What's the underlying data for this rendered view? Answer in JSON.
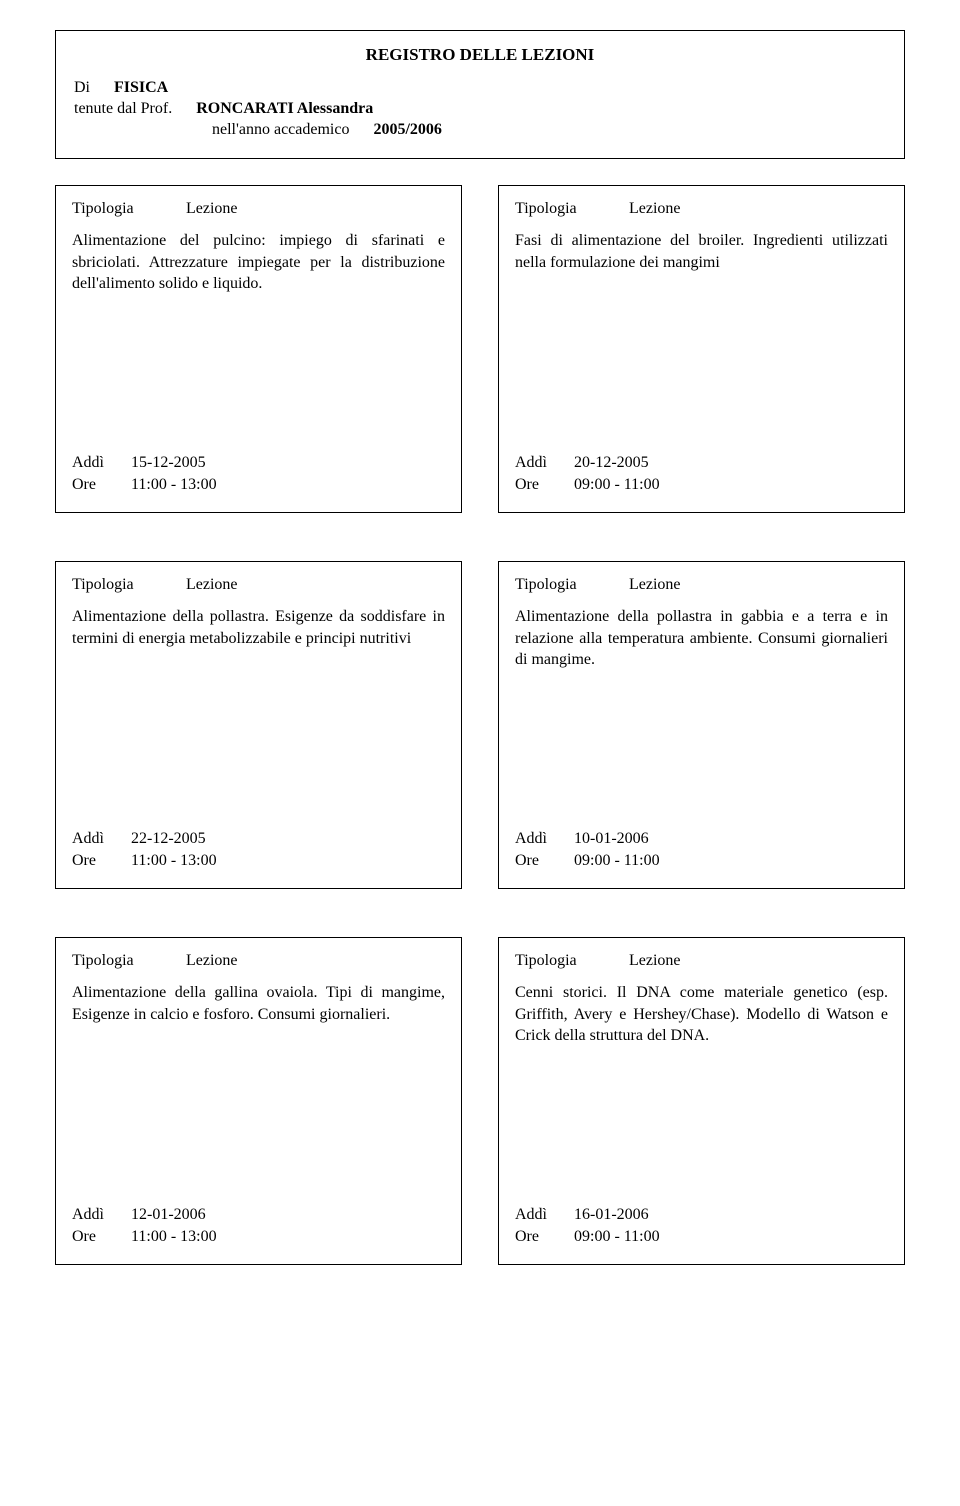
{
  "header": {
    "title": "REGISTRO DELLE LEZIONI",
    "di_label": "Di",
    "subject": "FISICA",
    "tenute_label": "tenute dal Prof.",
    "prof": "RONCARATI Alessandra",
    "year_label": "nell'anno accademico",
    "year": "2005/2006"
  },
  "tip_label": "Tipologia",
  "tip_value": "Lezione",
  "addi_label": "Addì",
  "ore_label": "Ore",
  "entries": [
    {
      "body": "Alimentazione del pulcino: impiego di sfarinati e sbriciolati. Attrezzature impiegate per la distribuzione dell'alimento solido e liquido.",
      "date": "15-12-2005",
      "time": "11:00  -  13:00"
    },
    {
      "body": "Fasi di alimentazione del broiler. Ingredienti utilizzati nella formulazione dei mangimi",
      "date": "20-12-2005",
      "time": "09:00  -  11:00"
    },
    {
      "body": "Alimentazione della pollastra. Esigenze da soddisfare in termini di energia metabolizzabile e principi nutritivi",
      "date": "22-12-2005",
      "time": "11:00  -  13:00"
    },
    {
      "body": "Alimentazione della pollastra in gabbia e a terra e in relazione alla temperatura ambiente. Consumi giornalieri di mangime.",
      "date": "10-01-2006",
      "time": "09:00  -  11:00"
    },
    {
      "body": "Alimentazione della gallina ovaiola. Tipi di mangime, Esigenze in calcio e fosforo. Consumi giornalieri.",
      "date": "12-01-2006",
      "time": "11:00  -  13:00"
    },
    {
      "body": "Cenni storici. Il DNA come materiale genetico (esp. Griffith, Avery e Hershey/Chase). Modello di Watson e Crick della struttura del DNA.",
      "date": "16-01-2006",
      "time": "09:00  -  11:00"
    }
  ]
}
